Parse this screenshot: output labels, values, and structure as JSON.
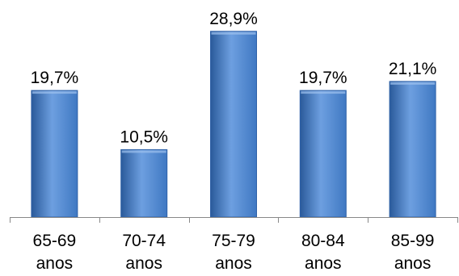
{
  "chart_data": {
    "type": "bar",
    "categories": [
      [
        "65-69",
        "anos"
      ],
      [
        "70-74",
        "anos"
      ],
      [
        "75-79",
        "anos"
      ],
      [
        "80-84",
        "anos"
      ],
      [
        "85-99",
        "anos"
      ]
    ],
    "values": [
      19.7,
      10.5,
      28.9,
      19.7,
      21.1
    ],
    "data_labels": [
      "19,7%",
      "10,5%",
      "28,9%",
      "19,7%",
      "21,1%"
    ],
    "ylim": [
      0,
      30
    ],
    "grid": false,
    "legend": "none",
    "bar_color": "#3f78c2",
    "bar_color_light": "#6d9fe0",
    "bar_color_dark": "#2a5a9a"
  }
}
